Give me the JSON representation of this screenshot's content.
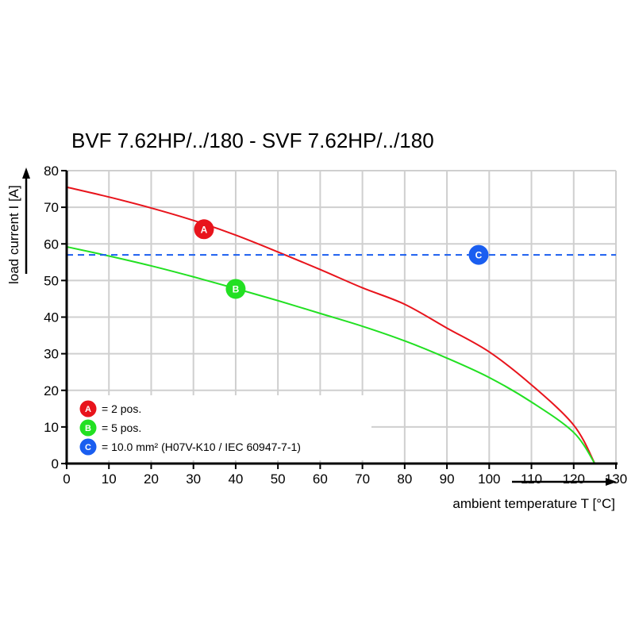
{
  "chart_data": {
    "type": "line",
    "title": "BVF 7.62HP/../180 - SVF 7.62HP/../180",
    "xlabel": "ambient temperature T [°C]",
    "ylabel": "load current I [A]",
    "xlim": [
      0,
      130
    ],
    "ylim": [
      0,
      80
    ],
    "xticks": [
      "0",
      "10",
      "20",
      "30",
      "40",
      "50",
      "60",
      "70",
      "80",
      "90",
      "100",
      "110",
      "120",
      "130"
    ],
    "yticks": [
      "0",
      "10",
      "20",
      "30",
      "40",
      "50",
      "60",
      "70",
      "80"
    ],
    "grid": true,
    "legend_position": "bottom-left",
    "series": [
      {
        "name": "A",
        "legend": "= 2 pos.",
        "color": "#e8141c",
        "style": "solid",
        "x": [
          0,
          10,
          20,
          30,
          40,
          50,
          60,
          70,
          80,
          90,
          100,
          110,
          120,
          125
        ],
        "y": [
          75.5,
          72.8,
          69.8,
          66.4,
          62.4,
          57.8,
          53,
          48,
          43.5,
          37,
          30.5,
          21.5,
          10.5,
          0
        ],
        "marker_at": [
          32.5,
          64
        ]
      },
      {
        "name": "B",
        "legend": "= 5 pos.",
        "color": "#22e022",
        "style": "solid",
        "x": [
          0,
          10,
          20,
          30,
          40,
          50,
          60,
          70,
          80,
          90,
          100,
          110,
          120,
          125
        ],
        "y": [
          59.2,
          56.7,
          54,
          51,
          47.8,
          44.5,
          41,
          37.5,
          33.5,
          28.8,
          23.5,
          16.8,
          8.5,
          0
        ],
        "marker_at": [
          40,
          47.7
        ]
      },
      {
        "name": "C",
        "legend": "= 10.0 mm² (H07V-K10 / IEC 60947-7-1)",
        "color": "#1a5ef0",
        "style": "dashed",
        "x": [
          0,
          130
        ],
        "y": [
          57,
          57
        ],
        "marker_at": [
          97.5,
          57
        ]
      }
    ]
  }
}
